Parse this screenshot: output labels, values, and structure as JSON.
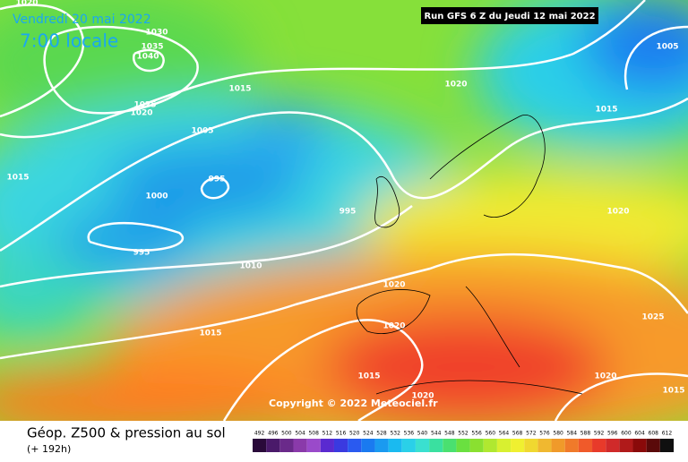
{
  "header": {
    "date": "Vendredi 20 mai 2022",
    "time": "7:00 locale",
    "run": "Run GFS 6 Z du Jeudi 12 mai 2022"
  },
  "map": {
    "copyright": "Copyright © 2022 Meteociel.fr",
    "isobar_labels": [
      "1020",
      "1030",
      "1035",
      "1040",
      "1025",
      "1020",
      "1015",
      "1005",
      "1020",
      "1005",
      "1015",
      "1015",
      "995",
      "1000",
      "995",
      "995",
      "1010",
      "1020",
      "1020",
      "1015",
      "1015",
      "1020",
      "1020",
      "1025",
      "1015",
      "1020"
    ]
  },
  "footer": {
    "title": "Géop. Z500 & pression au sol",
    "subtitle": "(+ 192h)",
    "scale": {
      "labels": [
        492,
        496,
        500,
        504,
        508,
        512,
        516,
        520,
        524,
        528,
        532,
        536,
        540,
        544,
        548,
        552,
        556,
        560,
        564,
        568,
        572,
        576,
        580,
        584,
        588,
        592,
        596,
        600,
        604,
        608,
        612
      ],
      "colors": [
        "#2a0a3a",
        "#4a1a6a",
        "#6a2a8a",
        "#8a3aaa",
        "#9a4aca",
        "#5a2ad0",
        "#3a3ae0",
        "#2a5af0",
        "#1a7af0",
        "#1a9af0",
        "#1abaf0",
        "#2ad0e8",
        "#3ae0d0",
        "#3ae0a0",
        "#4ae070",
        "#6ae040",
        "#8ae030",
        "#b0e830",
        "#d8f030",
        "#f0f030",
        "#f0d830",
        "#f0b830",
        "#f09a2a",
        "#f07a2a",
        "#f05a2a",
        "#e83a2a",
        "#d02a2a",
        "#b01a1a",
        "#8a0a0a",
        "#5a0a0a",
        "#101010"
      ]
    }
  }
}
